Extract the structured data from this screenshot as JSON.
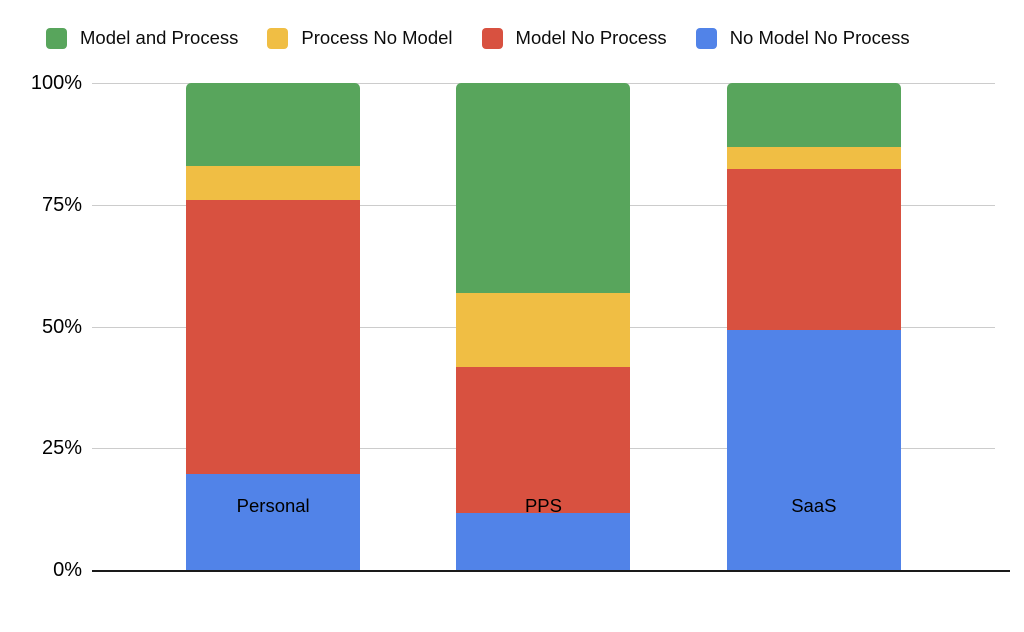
{
  "chart_data": {
    "type": "bar",
    "variant": "stacked-100-percent",
    "title": "",
    "xlabel": "",
    "ylabel": "",
    "categories": [
      "Personal",
      "PPS",
      "SaaS"
    ],
    "series": [
      {
        "name": "Model and Process",
        "color": "#58A55C",
        "values": [
          17,
          43,
          13
        ]
      },
      {
        "name": "Process No Model",
        "color": "#F0BE44",
        "values": [
          7,
          15,
          4.5
        ]
      },
      {
        "name": "Model No Process",
        "color": "#D85140",
        "values": [
          56,
          30,
          33
        ]
      },
      {
        "name": "No Model No Process",
        "color": "#5183E8",
        "values": [
          20,
          12,
          49.5
        ]
      }
    ],
    "stack_order_bottom_to_top": [
      "No Model No Process",
      "Model No Process",
      "Process No Model",
      "Model and Process"
    ],
    "y_ticks": [
      "100%",
      "75%",
      "50%",
      "25%",
      "0%"
    ],
    "ylim": [
      0,
      100
    ],
    "legend_position": "top",
    "grid": true,
    "colors": {
      "gridline": "#cccccc",
      "axis": "#1a1a1a",
      "text": "#000000",
      "background": "#ffffff"
    }
  }
}
